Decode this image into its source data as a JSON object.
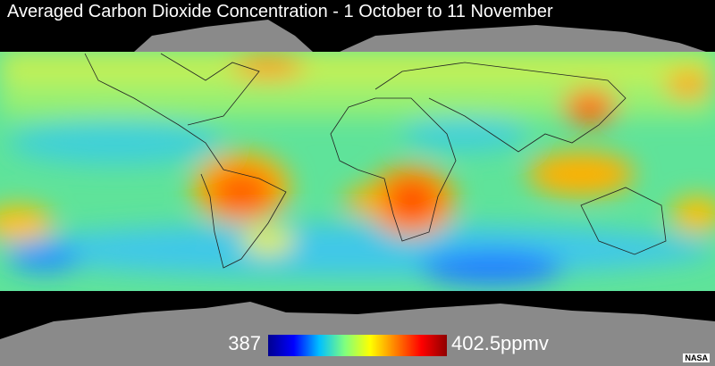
{
  "title": "Averaged Carbon Dioxide Concentration - 1 October to 11 November",
  "colorbar": {
    "min": {
      "value": 387,
      "label": "387"
    },
    "max": {
      "value": 402.5,
      "label": "402.5ppmv"
    },
    "colors": [
      "#00008f",
      "#0000ff",
      "#00bfff",
      "#7fff7f",
      "#ffff00",
      "#ff7f00",
      "#ff0000",
      "#8f0000"
    ]
  },
  "credit": "NASA"
}
